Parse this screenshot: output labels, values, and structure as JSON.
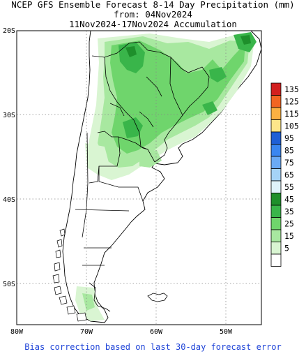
{
  "title": {
    "line1": "NCEP GFS Ensemble Forecast 8-14 Day Precipitation (mm)",
    "line2": "from: 04Nov2024",
    "line3": "11Nov2024-17Nov2024 Accumulation"
  },
  "axes": {
    "lat_labels": [
      "20S",
      "30S",
      "40S",
      "50S"
    ],
    "lon_labels": [
      "80W",
      "70W",
      "60W",
      "50W"
    ],
    "lat_range": [
      -55,
      -20
    ],
    "lon_range": [
      -80,
      -45
    ],
    "grid": true
  },
  "legend": {
    "placement": "right",
    "bins": [
      {
        "label": "135",
        "color": "#d21f1f"
      },
      {
        "label": "125",
        "color": "#f26522"
      },
      {
        "label": "115",
        "color": "#fbb042"
      },
      {
        "label": "105",
        "color": "#fde68a"
      },
      {
        "label": "95",
        "color": "#1e5fd6"
      },
      {
        "label": "85",
        "color": "#3a86f0"
      },
      {
        "label": "75",
        "color": "#6aaaf5"
      },
      {
        "label": "65",
        "color": "#a5d3f7"
      },
      {
        "label": "55",
        "color": "#dff3fb"
      },
      {
        "label": "45",
        "color": "#1e8f2b"
      },
      {
        "label": "35",
        "color": "#39b54a"
      },
      {
        "label": "25",
        "color": "#6fd56c"
      },
      {
        "label": "15",
        "color": "#a8e8a0"
      },
      {
        "label": "5",
        "color": "#d9f5d2"
      },
      {
        "label": "",
        "color": "#ffffff"
      }
    ]
  },
  "footer": "Bias correction based on last 30-day forecast error"
}
